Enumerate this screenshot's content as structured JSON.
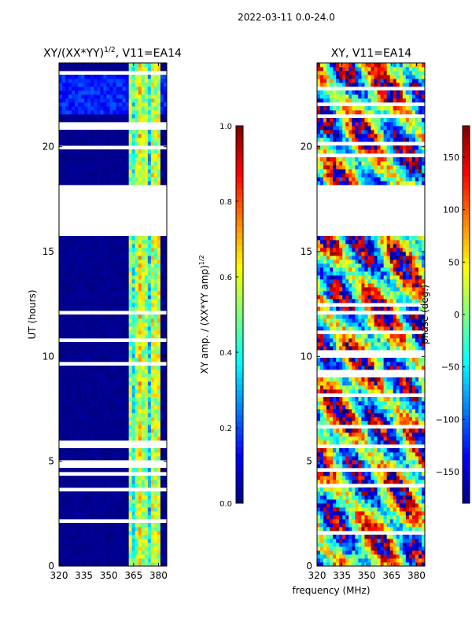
{
  "page_title": "2022-03-11 0.0-24.0",
  "colormap": [
    "#00007f",
    "#0000ff",
    "#007fff",
    "#00ffff",
    "#7fff7f",
    "#ffff00",
    "#ff7f00",
    "#ff0000",
    "#7f0000"
  ],
  "chart_data": [
    {
      "type": "heatmap",
      "title": "XY/(XX*YY)",
      "title_sup": "1/2",
      "title_suffix": ", V11=EA14",
      "ylabel": "UT (hours)",
      "xlim": [
        320,
        385
      ],
      "ylim": [
        0,
        24
      ],
      "xticks": [
        320,
        335,
        350,
        365,
        380
      ],
      "yticks": [
        0,
        5,
        10,
        15,
        20
      ],
      "gap_hours": [
        [
          15.8,
          18.2
        ]
      ],
      "colorbar": {
        "label": "XY amp. / (XX*YY amp)",
        "label_sup": "1/2",
        "range": [
          0.0,
          1.0
        ],
        "ticks": [
          "0.0",
          "0.2",
          "0.4",
          "0.6",
          "0.8",
          "1.0"
        ]
      },
      "description": "Normalized XY amplitude, mostly near 0 (dark blue) below 362 MHz with elevated values (0.3-0.8) in 362-382 MHz band"
    },
    {
      "type": "heatmap",
      "title": "XY, V11=EA14",
      "ylabel": "",
      "xlabel": "frequency (MHz)",
      "xlim": [
        320,
        385
      ],
      "ylim": [
        0,
        24
      ],
      "xticks": [
        320,
        335,
        350,
        365,
        380
      ],
      "yticks": [
        0,
        5,
        10,
        15,
        20
      ],
      "gap_hours": [
        [
          15.8,
          18.2
        ]
      ],
      "colorbar": {
        "label": "phase (deg.)",
        "range": [
          -180,
          180
        ],
        "ticks": [
          "−150",
          "−100",
          "−50",
          "0",
          "50",
          "100",
          "150"
        ],
        "tick_values": [
          -150,
          -100,
          -50,
          0,
          50,
          100,
          150
        ]
      },
      "description": "XY phase spanning full -180 to 180 degree range, noisy across frequency and time"
    }
  ]
}
